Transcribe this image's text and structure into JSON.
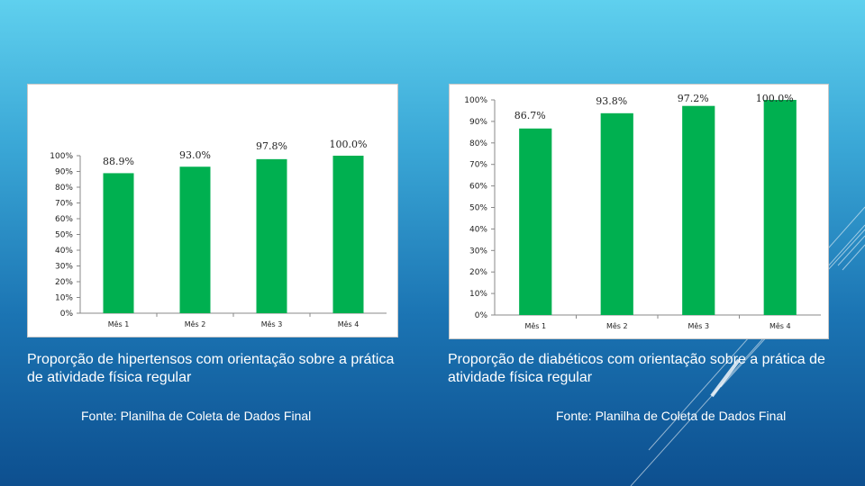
{
  "colors": {
    "bar": "#00b050",
    "panel": "#ffffff"
  },
  "chart_data": [
    {
      "type": "bar",
      "categories": [
        "Mês 1",
        "Mês 2",
        "Mês 3",
        "Mês 4"
      ],
      "values": [
        88.9,
        93.0,
        97.8,
        100.0
      ],
      "data_labels": [
        "88.9%",
        "93.0%",
        "97.8%",
        "100.0%"
      ],
      "ylim": [
        0,
        100
      ],
      "yticks": [
        "0%",
        "10%",
        "20%",
        "30%",
        "40%",
        "50%",
        "60%",
        "70%",
        "80%",
        "90%",
        "100%"
      ],
      "title": "",
      "xlabel": "",
      "ylabel": "",
      "grid": false,
      "legend": "none"
    },
    {
      "type": "bar",
      "categories": [
        "Mês 1",
        "Mês 2",
        "Mês 3",
        "Mês 4"
      ],
      "values": [
        86.7,
        93.8,
        97.2,
        100.0
      ],
      "data_labels": [
        "86.7%",
        "93.8%",
        "97.2%",
        "100.0%"
      ],
      "ylim": [
        0,
        100
      ],
      "yticks": [
        "0%",
        "10%",
        "20%",
        "30%",
        "40%",
        "50%",
        "60%",
        "70%",
        "80%",
        "90%",
        "100%"
      ],
      "title": "",
      "xlabel": "",
      "ylabel": "",
      "grid": false,
      "legend": "none"
    }
  ],
  "captions": {
    "left": "Proporção de hipertensos com orientação sobre a prática de atividade física regular",
    "right": "Proporção de diabéticos com orientação sobre a prática de atividade física regular"
  },
  "sources": {
    "left": "Fonte: Planilha de Coleta de Dados Final",
    "right": "Fonte: Planilha de Coleta de Dados Final"
  }
}
